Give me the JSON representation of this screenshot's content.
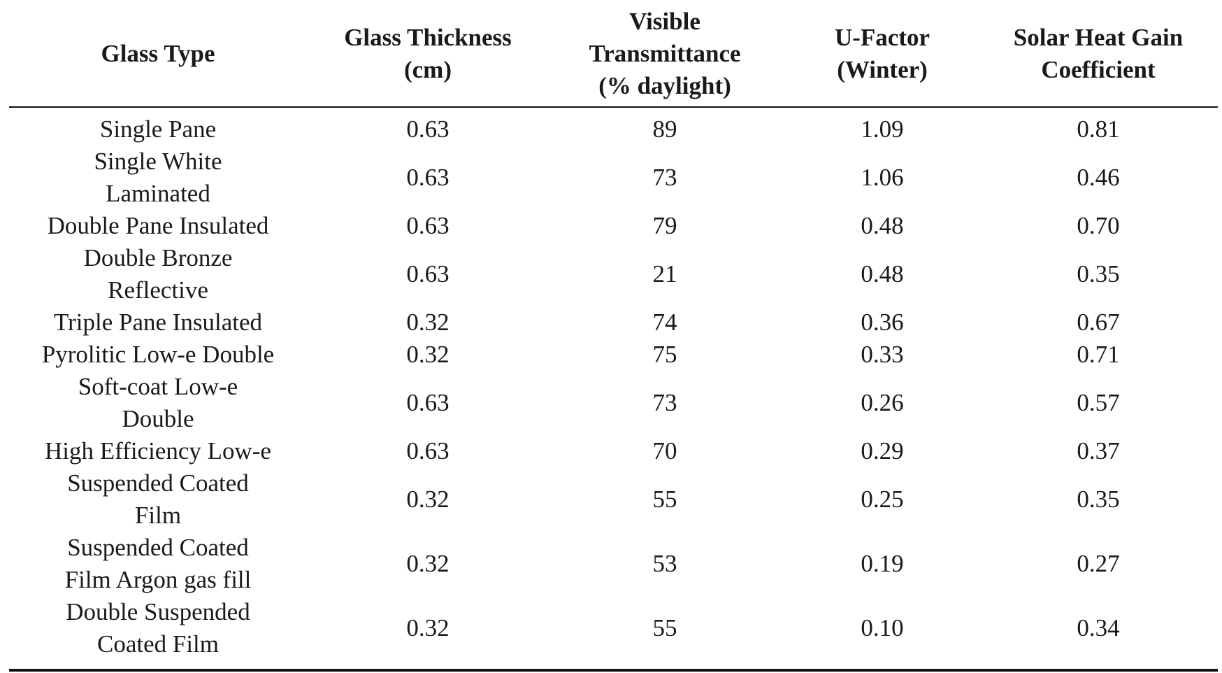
{
  "table": {
    "columns": [
      "Glass Type",
      "Glass Thickness\n(cm)",
      "Visible\nTransmittance\n(% daylight)",
      "U-Factor\n(Winter)",
      "Solar Heat Gain\nCoefficient"
    ],
    "rows": [
      [
        "Single Pane",
        "0.63",
        "89",
        "1.09",
        "0.81"
      ],
      [
        "Single White\nLaminated",
        "0.63",
        "73",
        "1.06",
        "0.46"
      ],
      [
        "Double Pane Insulated",
        "0.63",
        "79",
        "0.48",
        "0.70"
      ],
      [
        "Double Bronze\nReflective",
        "0.63",
        "21",
        "0.48",
        "0.35"
      ],
      [
        "Triple Pane Insulated",
        "0.32",
        "74",
        "0.36",
        "0.67"
      ],
      [
        "Pyrolitic Low-e Double",
        "0.32",
        "75",
        "0.33",
        "0.71"
      ],
      [
        "Soft-coat Low-e\nDouble",
        "0.63",
        "73",
        "0.26",
        "0.57"
      ],
      [
        "High Efficiency Low-e",
        "0.63",
        "70",
        "0.29",
        "0.37"
      ],
      [
        "Suspended Coated\nFilm",
        "0.32",
        "55",
        "0.25",
        "0.35"
      ],
      [
        "Suspended Coated\nFilm Argon gas fill",
        "0.32",
        "53",
        "0.19",
        "0.27"
      ],
      [
        "Double Suspended\nCoated Film",
        "0.32",
        "55",
        "0.10",
        "0.34"
      ]
    ]
  }
}
